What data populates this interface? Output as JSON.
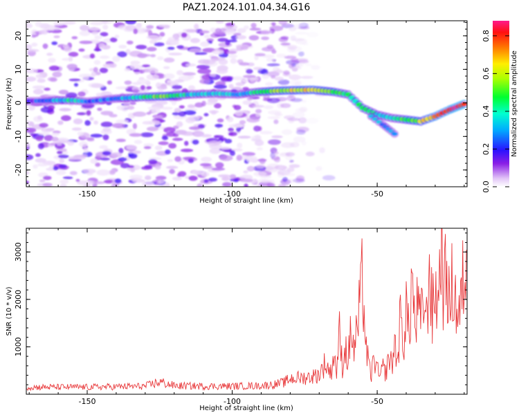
{
  "title": "PAZ1.2024.101.04.34.G16",
  "chart_data": [
    {
      "type": "heatmap",
      "xlabel": "Height of straight line (km)",
      "ylabel": "Frequency (Hz)",
      "xlim": [
        -171,
        -19
      ],
      "ylim": [
        -25,
        24.5
      ],
      "x_ticks": [
        "-150",
        "-100",
        "-50"
      ],
      "y_ticks": [
        "20",
        "10",
        "0",
        "-10",
        "-20"
      ],
      "colorbar": {
        "label": "Normalized spectral amplitude",
        "range": [
          0.0,
          0.88
        ],
        "ticks": [
          "0.0",
          "0.2",
          "0.4",
          "0.6",
          "0.8"
        ],
        "colormap": "rainbow (white, violet, blue, cyan, green, yellow, orange, red, pink)"
      },
      "ridge": {
        "x": [
          -171,
          -160,
          -155,
          -150,
          -140,
          -130,
          -123,
          -115,
          -105,
          -98,
          -92,
          -85,
          -78,
          -72,
          -65,
          -60,
          -55,
          -50,
          -45,
          -40,
          -35,
          -30,
          -25,
          -22,
          -19
        ],
        "y": [
          0.5,
          0.8,
          0.8,
          0.4,
          1.3,
          1.8,
          2.0,
          2.5,
          2.8,
          2.5,
          3.2,
          3.6,
          3.8,
          3.9,
          3.3,
          2.5,
          -1.5,
          -3.5,
          -4.5,
          -5.0,
          -5.5,
          -4.0,
          -2.0,
          -1.0,
          0.0
        ],
        "amplitude": [
          0.15,
          0.35,
          0.38,
          0.25,
          0.3,
          0.45,
          0.55,
          0.35,
          0.35,
          0.3,
          0.4,
          0.55,
          0.62,
          0.65,
          0.5,
          0.42,
          0.45,
          0.4,
          0.35,
          0.5,
          0.6,
          0.75,
          0.8,
          0.85,
          0.8
        ]
      },
      "branch": {
        "x": [
          -52,
          -48,
          -45,
          -43
        ],
        "y": [
          -4,
          -6.5,
          -8.5,
          -10
        ],
        "amplitude": [
          0.35,
          0.3,
          0.28,
          0.25
        ]
      },
      "noise_extent_x": [
        -171,
        -75
      ],
      "grid": false
    },
    {
      "type": "line",
      "xlabel": "Height of straight line (km)",
      "ylabel": "SNR (10 * v/v)",
      "xlim": [
        -171,
        -19
      ],
      "ylim": [
        0,
        3500
      ],
      "x_ticks": [
        "-150",
        "-100",
        "-50"
      ],
      "y_ticks": [
        "1000",
        "2000",
        "3000"
      ],
      "color": "#e8393b",
      "grid": false,
      "series": [
        {
          "x": [
            -171,
            -160,
            -150,
            -140,
            -130,
            -125,
            -120,
            -110,
            -100,
            -90,
            -85,
            -82,
            -80,
            -75,
            -72,
            -70,
            -68,
            -66,
            -65,
            -64,
            -63,
            -62,
            -61,
            -60,
            -59,
            -58,
            -57,
            -56,
            -55,
            -54,
            -53,
            -52,
            -51,
            -50,
            -49,
            -48,
            -47,
            -46,
            -45,
            -44,
            -43,
            -42,
            -41,
            -40,
            -39,
            -38,
            -37,
            -36,
            -35,
            -34,
            -33,
            -32,
            -31,
            -30,
            -29,
            -28,
            -27,
            -26,
            -25,
            -24,
            -23,
            -22,
            -21,
            -20,
            -19
          ],
          "y": [
            150,
            150,
            150,
            160,
            170,
            260,
            180,
            170,
            170,
            180,
            210,
            250,
            330,
            350,
            380,
            420,
            650,
            450,
            850,
            500,
            1250,
            600,
            1000,
            700,
            1400,
            900,
            1300,
            1800,
            2500,
            1100,
            600,
            400,
            800,
            500,
            350,
            550,
            450,
            800,
            600,
            1050,
            700,
            1600,
            1000,
            1900,
            1150,
            2600,
            1300,
            1900,
            1400,
            2100,
            1500,
            2800,
            1600,
            2300,
            1800,
            3500,
            2000,
            2700,
            1700,
            2400,
            2000,
            1600,
            1900,
            2700,
            2500
          ]
        }
      ]
    }
  ]
}
